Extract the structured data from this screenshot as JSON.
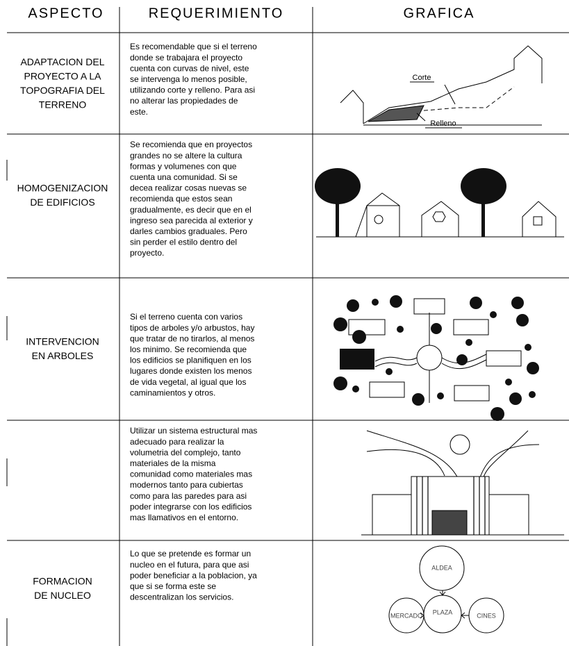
{
  "header": {
    "aspect": "ASPECTO",
    "requirement": "REQUERIMIENTO",
    "graphic": "GRAFICA"
  },
  "rows": [
    {
      "aspect": [
        "ADAPTACION DEL",
        "PROYECTO A LA",
        "TOPOGRAFIA DEL",
        "TERRENO"
      ],
      "requirement": [
        "Es recomendable que si el terreno",
        "donde se trabajara el proyecto",
        "cuenta con curvas de nivel, este",
        "se intervenga lo menos posible,",
        "utilizando corte y relleno. Para asi",
        "no alterar las propiedades de",
        "este."
      ],
      "labels": [
        "Corte",
        "Relleno"
      ]
    },
    {
      "aspect": [
        "HOMOGENIZACION",
        "DE EDIFICIOS"
      ],
      "requirement": [
        "Se recomienda que en proyectos",
        "grandes no se altere la cultura",
        "formas y volumenes con que",
        "cuenta una comunidad. Si se",
        "decea realizar cosas nuevas se",
        "recomienda que estos sean",
        "gradualmente, es decir que en el",
        "ingreso sea parecida al exterior y",
        "darles cambios graduales. Pero",
        "sin perder el estilo dentro del",
        "proyecto."
      ]
    },
    {
      "aspect": [
        "INTERVENCION",
        "EN ARBOLES"
      ],
      "requirement": [
        "Si el terreno cuenta con varios",
        "tipos de arboles y/o arbustos, hay",
        "que tratar de no tirarlos, al menos",
        "los minimo. Se recomienda que",
        "los edificios se planifiquen en los",
        "lugares donde existen los menos",
        "de vida vegetal, al igual que los",
        "caminamientos y otros."
      ]
    },
    {
      "aspect": [],
      "requirement": [
        "Utilizar un sistema estructural mas",
        "adecuado para realizar la",
        "volumetria del complejo, tanto",
        "materiales de la misma",
        "comunidad como materiales mas",
        "modernos tanto para cubiertas",
        "como para las paredes para asi",
        "poder integrarse con los edificios",
        "mas llamativos en el entorno."
      ]
    },
    {
      "aspect": [
        "FORMACION",
        "DE NUCLEO"
      ],
      "requirement": [
        "Lo que se pretende es formar un",
        "nucleo en el futura, para que asi",
        "poder beneficiar a la poblacion, ya",
        "que si se forma este se",
        "descentralizan los servicios."
      ],
      "labels": [
        "ALDEA",
        "PLAZA",
        "MERCADO",
        "CINES"
      ]
    }
  ]
}
